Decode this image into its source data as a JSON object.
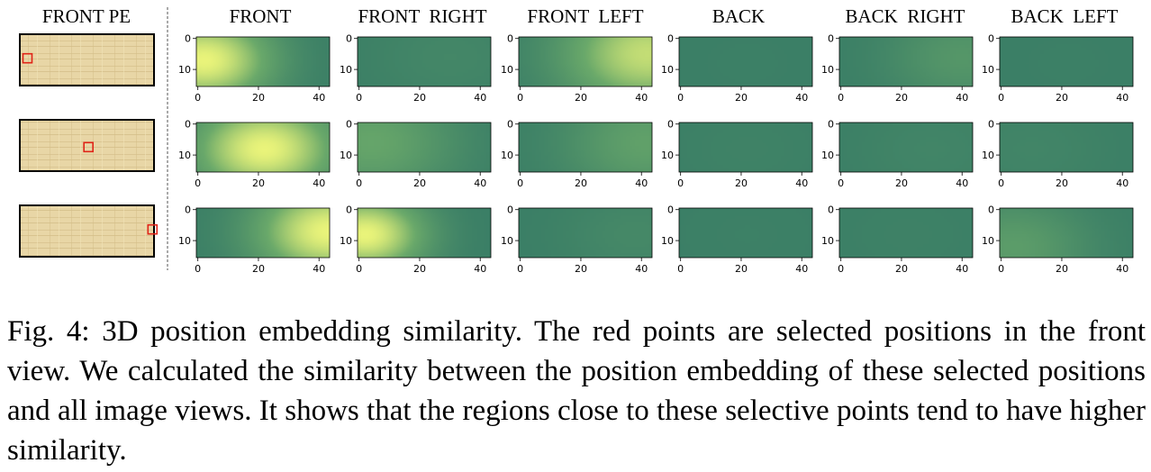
{
  "headers": {
    "pe": "FRONT PE",
    "views": [
      "FRONT",
      "FRONT  RIGHT",
      "FRONT  LEFT",
      "BACK",
      "BACK  RIGHT",
      "BACK  LEFT"
    ]
  },
  "caption": {
    "label": "Fig. 4:",
    "text": "3D position embedding similarity. The red points are selected positions in the front view. We calculated the similarity between the position embedding of these selected positions and all image views. It shows that the regions close to these selective points tend to have higher similarity."
  },
  "colors": {
    "low": "#3a7e66",
    "mid": "#6aa96a",
    "high": "#eaf47a",
    "marker": "#e02418",
    "paper": "#e8d6a6"
  },
  "chart_data": {
    "type": "heatmap",
    "map_shape": {
      "rows": 16,
      "cols": 44
    },
    "x_ticks": [
      0,
      20,
      40
    ],
    "y_ticks": [
      0,
      10
    ],
    "rows": [
      {
        "selected_point": {
          "x": 2,
          "y": 7
        },
        "panels": [
          {
            "view": "FRONT",
            "peak": {
              "x": 2,
              "y": 7,
              "intensity": 1.0,
              "spread": 16
            }
          },
          {
            "view": "FRONT  RIGHT",
            "peak": {
              "x": 30,
              "y": 6,
              "intensity": 0.1,
              "spread": 20
            }
          },
          {
            "view": "FRONT  LEFT",
            "peak": {
              "x": 42,
              "y": 5,
              "intensity": 0.85,
              "spread": 20
            }
          },
          {
            "view": "BACK",
            "peak": {
              "x": 22,
              "y": 8,
              "intensity": 0.02,
              "spread": 20
            }
          },
          {
            "view": "BACK  RIGHT",
            "peak": {
              "x": 40,
              "y": 6,
              "intensity": 0.28,
              "spread": 18
            }
          },
          {
            "view": "BACK  LEFT",
            "peak": {
              "x": 22,
              "y": 8,
              "intensity": 0.02,
              "spread": 20
            }
          }
        ]
      },
      {
        "selected_point": {
          "x": 22,
          "y": 8
        },
        "panels": [
          {
            "view": "FRONT",
            "peak": {
              "x": 22,
              "y": 8,
              "intensity": 1.0,
              "spread": 17
            }
          },
          {
            "view": "FRONT  RIGHT",
            "peak": {
              "x": 4,
              "y": 6,
              "intensity": 0.45,
              "spread": 20
            }
          },
          {
            "view": "FRONT  LEFT",
            "peak": {
              "x": 42,
              "y": 6,
              "intensity": 0.4,
              "spread": 20
            }
          },
          {
            "view": "BACK",
            "peak": {
              "x": 22,
              "y": 8,
              "intensity": 0.05,
              "spread": 20
            }
          },
          {
            "view": "BACK  RIGHT",
            "peak": {
              "x": 30,
              "y": 8,
              "intensity": 0.08,
              "spread": 20
            }
          },
          {
            "view": "BACK  LEFT",
            "peak": {
              "x": 10,
              "y": 8,
              "intensity": 0.08,
              "spread": 20
            }
          }
        ]
      },
      {
        "selected_point": {
          "x": 43,
          "y": 7
        },
        "panels": [
          {
            "view": "FRONT",
            "peak": {
              "x": 43,
              "y": 7,
              "intensity": 1.0,
              "spread": 17
            }
          },
          {
            "view": "FRONT  RIGHT",
            "peak": {
              "x": 2,
              "y": 8,
              "intensity": 1.0,
              "spread": 14
            }
          },
          {
            "view": "FRONT  LEFT",
            "peak": {
              "x": 38,
              "y": 8,
              "intensity": 0.12,
              "spread": 18
            }
          },
          {
            "view": "BACK",
            "peak": {
              "x": 22,
              "y": 8,
              "intensity": 0.03,
              "spread": 20
            }
          },
          {
            "view": "BACK  RIGHT",
            "peak": {
              "x": 22,
              "y": 8,
              "intensity": 0.04,
              "spread": 20
            }
          },
          {
            "view": "BACK  LEFT",
            "peak": {
              "x": 4,
              "y": 12,
              "intensity": 0.35,
              "spread": 18
            }
          }
        ]
      }
    ]
  }
}
